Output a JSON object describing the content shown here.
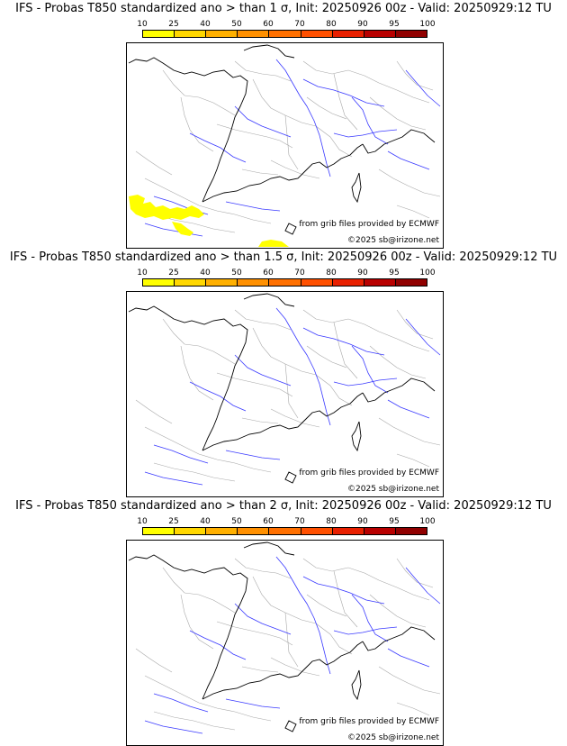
{
  "colorbar": {
    "labels": [
      "10",
      "25",
      "40",
      "50",
      "60",
      "70",
      "80",
      "90",
      "95",
      "100"
    ],
    "colors": [
      "#ffff00",
      "#ffd700",
      "#ffb000",
      "#ff9000",
      "#ff7000",
      "#ff5000",
      "#e82000",
      "#b80000",
      "#900000",
      "#600000"
    ]
  },
  "credits": {
    "source": "from grib files provided by ECMWF",
    "copyright": "©2025 sb@irizone.net"
  },
  "colors": {
    "border": "#000000",
    "rivers": "#3a3aff",
    "regions": "#a8a8a8",
    "anomaly": "#ffff00"
  },
  "panels": [
    {
      "title": "IFS - Probas T850  standardized ano > than 1 σ, Init: 20250926 00z - Valid: 20250929:12 TU",
      "show_anomaly": true
    },
    {
      "title": "IFS - Probas T850  standardized ano > than 1.5 σ, Init: 20250926 00z - Valid: 20250929:12 TU",
      "show_anomaly": false
    },
    {
      "title": "IFS - Probas T850  standardized ano > than 2 σ, Init: 20250926 00z - Valid: 20250929:12 TU",
      "show_anomaly": false
    }
  ]
}
